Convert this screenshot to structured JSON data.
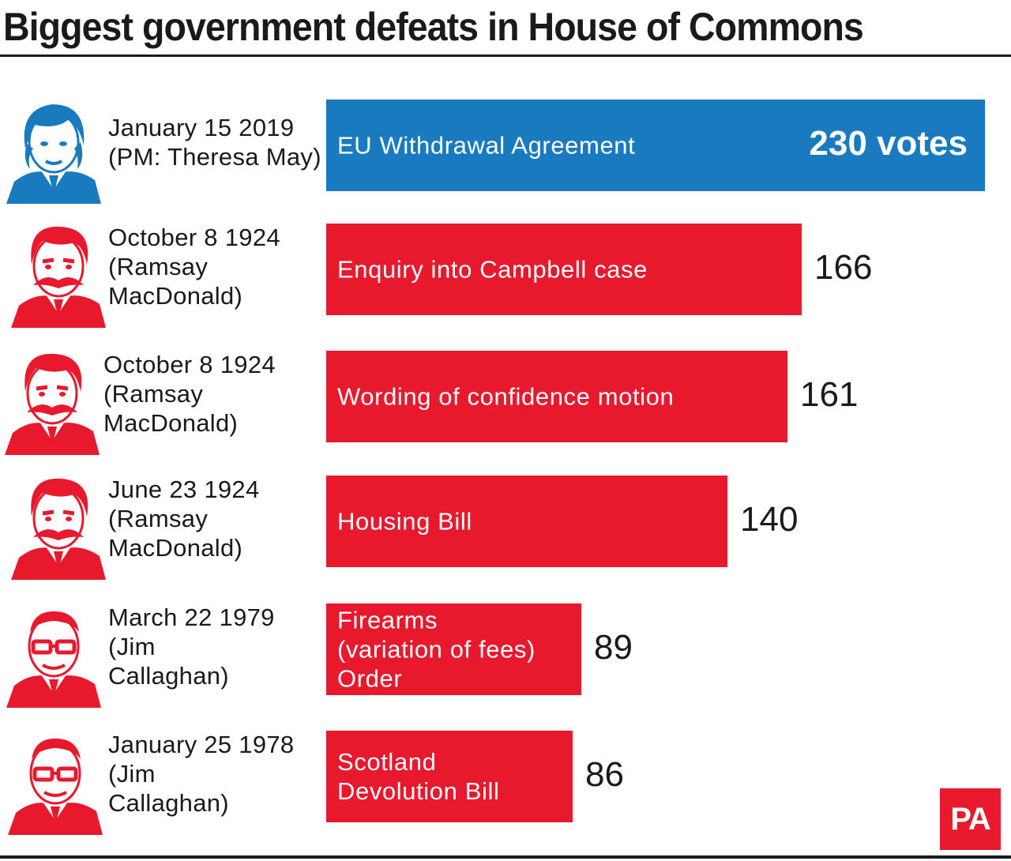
{
  "title": "Biggest government defeats in House of Commons",
  "logo": "PA",
  "colors": {
    "highlight": "#1a7abf",
    "bar": "#e8192c",
    "text": "#1a1a1a"
  },
  "chart_data": {
    "type": "bar",
    "orientation": "horizontal",
    "title": "Biggest government defeats in House of Commons",
    "categories": [
      "EU Withdrawal Agreement",
      "Enquiry into Campbell case",
      "Wording of confidence motion",
      "Housing Bill",
      "Firearms (variation of fees) Order",
      "Scotland Devolution Bill"
    ],
    "values": [
      230,
      166,
      161,
      140,
      89,
      86
    ],
    "value_labels": [
      "230 votes",
      "166",
      "161",
      "140",
      "89",
      "86"
    ],
    "bar_label_lines": [
      [
        "EU Withdrawal Agreement"
      ],
      [
        "Enquiry into Campbell case"
      ],
      [
        "Wording of confidence motion"
      ],
      [
        "Housing Bill"
      ],
      [
        "Firearms",
        "(variation of fees)",
        "Order"
      ],
      [
        "Scotland",
        "Devolution Bill"
      ]
    ],
    "row_meta": [
      {
        "date": "January 15 2019",
        "pm_lines": [
          "(PM: Theresa May)"
        ],
        "portrait": "theresa-may-portrait",
        "highlight": true
      },
      {
        "date": "October 8 1924",
        "pm_lines": [
          "(Ramsay",
          "MacDonald)"
        ],
        "portrait": "ramsay-macdonald-portrait",
        "highlight": false
      },
      {
        "date": "October 8 1924",
        "pm_lines": [
          "(Ramsay",
          "MacDonald)"
        ],
        "portrait": "ramsay-macdonald-portrait",
        "highlight": false
      },
      {
        "date": "June 23 1924",
        "pm_lines": [
          "(Ramsay",
          "MacDonald)"
        ],
        "portrait": "ramsay-macdonald-portrait",
        "highlight": false
      },
      {
        "date": "March 22 1979",
        "pm_lines": [
          "(Jim",
          "Callaghan)"
        ],
        "portrait": "jim-callaghan-portrait",
        "highlight": false
      },
      {
        "date": "January 25 1978",
        "pm_lines": [
          "(Jim",
          "Callaghan)"
        ],
        "portrait": "jim-callaghan-portrait",
        "highlight": false
      }
    ],
    "xlim": [
      0,
      230
    ],
    "grid": false,
    "legend": "none"
  }
}
